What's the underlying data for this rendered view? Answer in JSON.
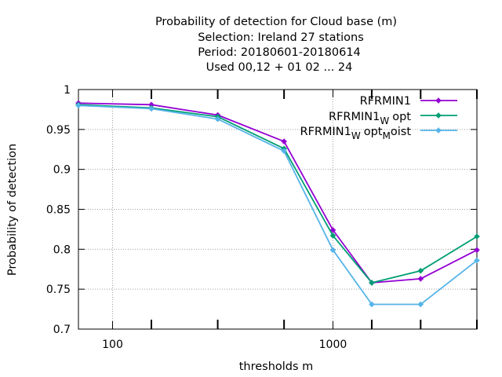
{
  "chart_data": {
    "type": "line",
    "title_lines": [
      "Probability of detection  for Cloud base (m)",
      "Selection: Ireland     27 stations",
      "Period: 20180601-20180614",
      "Used  00,12  + 01 02 ... 24"
    ],
    "xlabel": "thresholds m",
    "ylabel": "Probability of detection",
    "x_scale": "log",
    "xlim": [
      70,
      4500
    ],
    "ylim": [
      0.7,
      1.0
    ],
    "x_major_ticks": [
      100,
      1000
    ],
    "x_minor_ticks": [
      150,
      300,
      600,
      1500,
      2500,
      4500
    ],
    "y_ticks": [
      "0.7",
      "0.75",
      "0.8",
      "0.85",
      "0.9",
      "0.95",
      "1"
    ],
    "grid": true,
    "legend_position": "top-right",
    "x": [
      70,
      150,
      300,
      600,
      1000,
      1500,
      2500,
      4500
    ],
    "series": [
      {
        "label_main": "RFRMIN1",
        "label_sub1": "",
        "label_mid": "",
        "label_sub2": "",
        "label_end": "",
        "color": "#9400d3",
        "values": [
          0.983,
          0.981,
          0.968,
          0.935,
          0.824,
          0.758,
          0.763,
          0.799
        ]
      },
      {
        "label_main": "RFRMIN1",
        "label_sub1": "W",
        "label_mid": "opt",
        "label_sub2": "",
        "label_end": "",
        "color": "#009e73",
        "values": [
          0.981,
          0.977,
          0.966,
          0.926,
          0.817,
          0.758,
          0.773,
          0.816
        ]
      },
      {
        "label_main": "RFRMIN1",
        "label_sub1": "W",
        "label_mid": "opt",
        "label_sub2": "M",
        "label_end": "oist",
        "color": "#56b4e9",
        "values": [
          0.98,
          0.976,
          0.963,
          0.923,
          0.799,
          0.731,
          0.731,
          0.786
        ]
      }
    ]
  }
}
